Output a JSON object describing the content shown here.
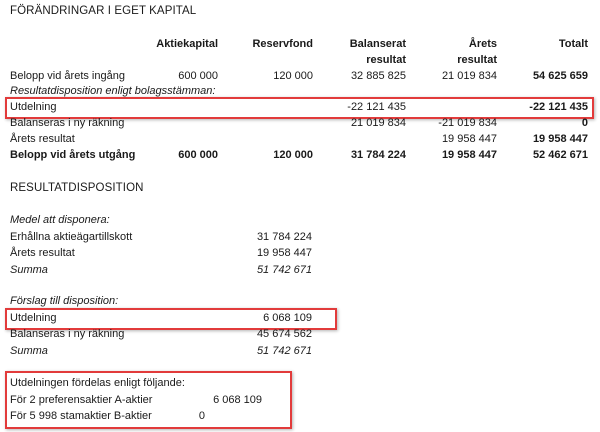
{
  "equity": {
    "title": "FÖRÄNDRINGAR I EGET KAPITAL",
    "columns": [
      "Aktiekapital",
      "Reservfond",
      "Balanserat resultat",
      "Årets resultat",
      "Totalt"
    ],
    "col_header_lines": [
      [
        "Aktiekapital",
        ""
      ],
      [
        "Reservfond",
        ""
      ],
      [
        "Balanserat",
        "resultat"
      ],
      [
        "Årets",
        "resultat"
      ],
      [
        "Totalt",
        ""
      ]
    ],
    "rows": [
      {
        "label": "Belopp vid årets ingång",
        "values": [
          "600 000",
          "120 000",
          "32 885 825",
          "21 019 834",
          "54 625 659"
        ],
        "style": "normal"
      },
      {
        "label": "Resultatdisposition enligt bolagsstämman:",
        "values": [
          "",
          "",
          "",
          "",
          ""
        ],
        "style": "italic"
      },
      {
        "label": "Utdelning",
        "values": [
          "",
          "",
          "-22 121 435",
          "",
          "-22 121 435"
        ],
        "style": "normal",
        "highlighted": true
      },
      {
        "label": "Balanseras i ny räkning",
        "values": [
          "",
          "",
          "21 019 834",
          "-21 019 834",
          "0"
        ],
        "style": "normal"
      },
      {
        "label": "Årets resultat",
        "values": [
          "",
          "",
          "",
          "19 958 447",
          "19 958 447"
        ],
        "style": "normal"
      },
      {
        "label": "Belopp vid årets utgång",
        "values": [
          "600 000",
          "120 000",
          "31 784 224",
          "19 958 447",
          "52 462 671"
        ],
        "style": "bold"
      }
    ]
  },
  "disposition": {
    "title": "RESULTATDISPOSITION",
    "available_heading": "Medel att disponera:",
    "available": [
      {
        "label": "Erhållna aktieägartillskott",
        "value": "31 784 224"
      },
      {
        "label": "Årets resultat",
        "value": "19 958 447"
      },
      {
        "label": "Summa",
        "value": "51 742 671"
      }
    ],
    "proposal_heading": "Förslag till disposition:",
    "proposal": [
      {
        "label": "Utdelning",
        "value": "6 068 109"
      },
      {
        "label": "Balanseras i ny räkning",
        "value": "45 674 562"
      },
      {
        "label": "Summa",
        "value": "51 742 671"
      }
    ],
    "distribution_heading": "Utdelningen fördelas enligt följande:",
    "distribution": [
      {
        "label": "För 2 preferensaktier A-aktier",
        "value": "6 068 109"
      },
      {
        "label": "För 5 998 stamaktier B-aktier",
        "value": "0"
      }
    ]
  },
  "highlight_color": "#e23b3b"
}
